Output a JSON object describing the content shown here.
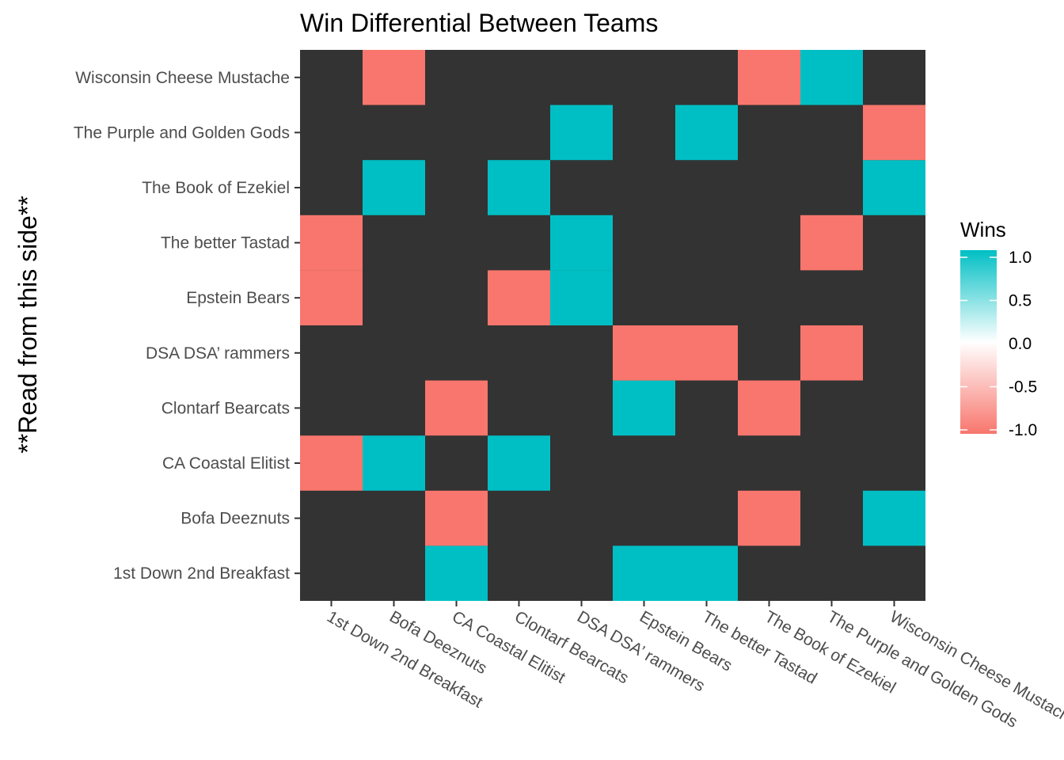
{
  "chart_data": {
    "type": "heatmap",
    "title": "Win Differential Between Teams",
    "xlabel": "",
    "ylabel": "**Read from this side**",
    "x_categories": [
      "1st Down 2nd Breakfast",
      "Bofa Deeznuts",
      "CA Coastal Elitist",
      "Clontarf Bearcats",
      "DSA DSA’ rammers",
      "Epstein Bears",
      "The better Tastad",
      "The Book of Ezekiel",
      "The Purple and Golden Gods",
      "Wisconsin Cheese Mustache"
    ],
    "y_categories": [
      "1st Down 2nd Breakfast",
      "Bofa Deeznuts",
      "CA Coastal Elitist",
      "Clontarf Bearcats",
      "DSA DSA’ rammers",
      "Epstein Bears",
      "The better Tastad",
      "The Book of Ezekiel",
      "The Purple and Golden Gods",
      "Wisconsin Cheese Mustache"
    ],
    "values": [
      [
        null,
        null,
        1,
        null,
        null,
        1,
        1,
        null,
        null,
        null
      ],
      [
        null,
        null,
        -1,
        null,
        null,
        null,
        null,
        -1,
        null,
        1
      ],
      [
        -1,
        1,
        null,
        1,
        null,
        null,
        null,
        null,
        null,
        null
      ],
      [
        null,
        null,
        -1,
        null,
        null,
        1,
        null,
        -1,
        null,
        null
      ],
      [
        null,
        null,
        null,
        null,
        null,
        -1,
        -1,
        null,
        -1,
        null
      ],
      [
        -1,
        null,
        null,
        -1,
        1,
        null,
        null,
        null,
        null,
        null
      ],
      [
        -1,
        null,
        null,
        null,
        1,
        null,
        null,
        null,
        -1,
        null
      ],
      [
        null,
        1,
        null,
        1,
        null,
        null,
        null,
        null,
        null,
        1
      ],
      [
        null,
        null,
        null,
        null,
        1,
        null,
        1,
        null,
        null,
        -1
      ],
      [
        null,
        -1,
        null,
        null,
        null,
        null,
        null,
        -1,
        1,
        null
      ]
    ],
    "legend": {
      "title": "Wins",
      "position": "right",
      "ticks": [
        "1.0",
        "0.5",
        "0.0",
        "-0.5",
        "-1.0"
      ],
      "tick_values": [
        1,
        0.5,
        0,
        -0.5,
        -1
      ],
      "range": [
        -1,
        1
      ]
    },
    "colors": {
      "high": "#00bfc4",
      "mid": "#ffffff",
      "low": "#f8766d",
      "na": "#333333"
    },
    "grid": false
  }
}
